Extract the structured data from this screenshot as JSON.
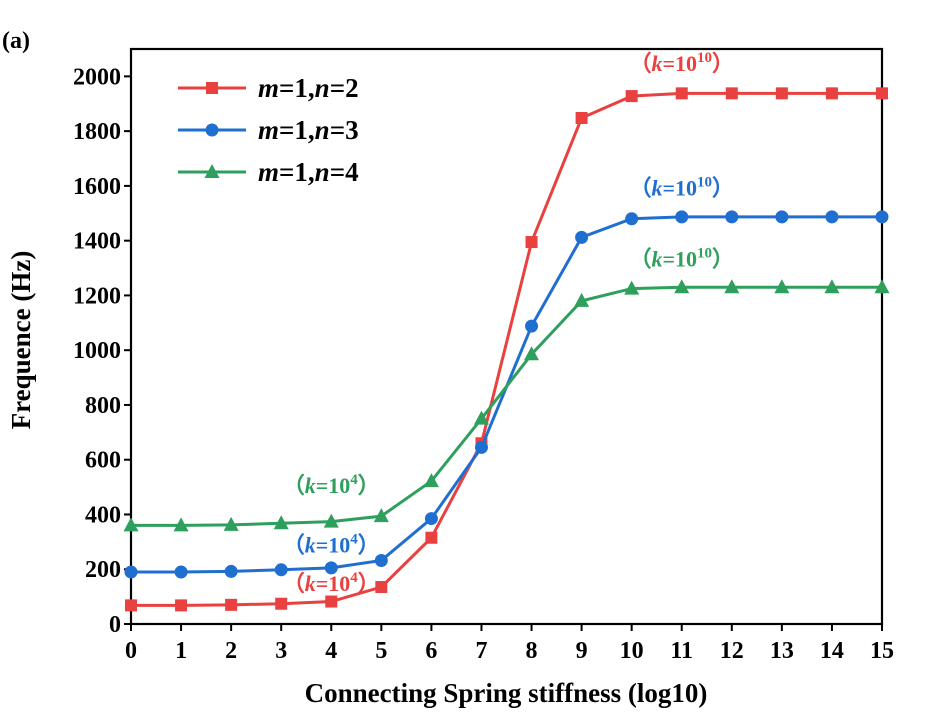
{
  "panel_label": "(a)",
  "chart_data": {
    "type": "line",
    "xlabel": "Connecting Spring stiffness (log10)",
    "ylabel": "Frequence (Hz)",
    "xlim": [
      0,
      15
    ],
    "ylim": [
      0,
      2100
    ],
    "xticks": [
      0,
      1,
      2,
      3,
      4,
      5,
      6,
      7,
      8,
      9,
      10,
      11,
      12,
      13,
      14,
      15
    ],
    "yticks": [
      0,
      200,
      400,
      600,
      800,
      1000,
      1200,
      1400,
      1600,
      1800,
      2000
    ],
    "grid": false,
    "legend_position": "top-left",
    "x": [
      0,
      1,
      2,
      3,
      4,
      5,
      6,
      7,
      8,
      9,
      10,
      11,
      12,
      13,
      14,
      15
    ],
    "series": [
      {
        "name_parts": [
          "m",
          "=1,",
          "n",
          "=2"
        ],
        "color": "#e8413f",
        "marker": "square",
        "values": [
          68,
          68,
          70,
          74,
          82,
          135,
          315,
          660,
          1395,
          1848,
          1928,
          1938,
          1938,
          1938,
          1938,
          1938
        ]
      },
      {
        "name_parts": [
          "m",
          "=1,",
          "n",
          "=3"
        ],
        "color": "#1f6fd1",
        "marker": "circle",
        "values": [
          190,
          190,
          192,
          198,
          205,
          232,
          385,
          645,
          1088,
          1412,
          1480,
          1487,
          1487,
          1487,
          1487,
          1487
        ]
      },
      {
        "name_parts": [
          "m",
          "=1,",
          "n",
          "=4"
        ],
        "color": "#2e9f5c",
        "marker": "triangle",
        "values": [
          360,
          360,
          362,
          368,
          374,
          394,
          522,
          750,
          985,
          1180,
          1225,
          1230,
          1230,
          1230,
          1230,
          1230
        ]
      }
    ],
    "annotations": [
      {
        "prefix": "（",
        "var": "k",
        "eq": "=10",
        "sup": "4",
        "suffix": "）",
        "color": "#2e9f5c",
        "x": 4,
        "y": 478
      },
      {
        "prefix": "（",
        "var": "k",
        "eq": "=10",
        "sup": "4",
        "suffix": "）",
        "color": "#1f6fd1",
        "x": 4,
        "y": 262
      },
      {
        "prefix": "（",
        "var": "k",
        "eq": "=10",
        "sup": "4",
        "suffix": "）",
        "color": "#e8413f",
        "x": 4,
        "y": 120
      },
      {
        "prefix": "（",
        "var": "k",
        "eq": "=10",
        "sup": "10",
        "suffix": "）",
        "color": "#e8413f",
        "x": 11,
        "y": 2020
      },
      {
        "prefix": "（",
        "var": "k",
        "eq": "=10",
        "sup": "10",
        "suffix": "）",
        "color": "#1f6fd1",
        "x": 11,
        "y": 1565
      },
      {
        "prefix": "（",
        "var": "k",
        "eq": "=10",
        "sup": "10",
        "suffix": "）",
        "color": "#2e9f5c",
        "x": 11,
        "y": 1305
      }
    ]
  }
}
